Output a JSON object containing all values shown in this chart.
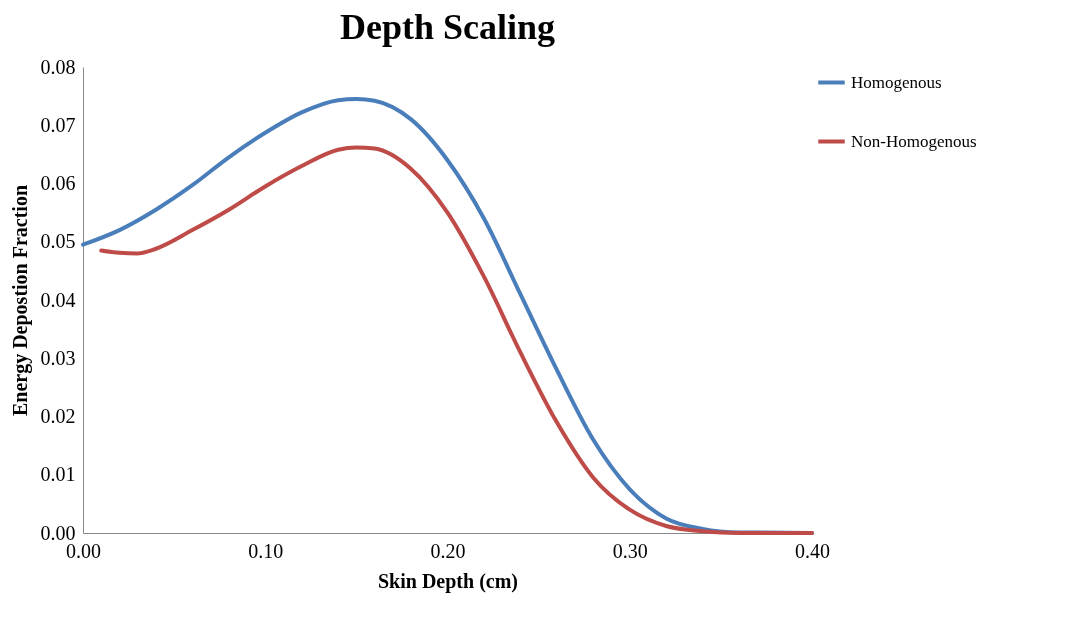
{
  "chart_data": {
    "type": "line",
    "title": "Depth Scaling",
    "xlabel": "Skin Depth (cm)",
    "ylabel": "Energy Depostion Fraction",
    "xlim": [
      0,
      0.4
    ],
    "ylim": [
      0,
      0.08
    ],
    "xticks": [
      {
        "value": 0,
        "label": "0.00"
      },
      {
        "value": 0.1,
        "label": "0.10"
      },
      {
        "value": 0.2,
        "label": "0.20"
      },
      {
        "value": 0.3,
        "label": "0.30"
      },
      {
        "value": 0.4,
        "label": "0.40"
      }
    ],
    "yticks": [
      {
        "value": 0,
        "label": "0.00"
      },
      {
        "value": 0.01,
        "label": "0.01"
      },
      {
        "value": 0.02,
        "label": "0.02"
      },
      {
        "value": 0.03,
        "label": "0.03"
      },
      {
        "value": 0.04,
        "label": "0.04"
      },
      {
        "value": 0.05,
        "label": "0.05"
      },
      {
        "value": 0.06,
        "label": "0.06"
      },
      {
        "value": 0.07,
        "label": "0.07"
      },
      {
        "value": 0.08,
        "label": "0.08"
      }
    ],
    "grid": false,
    "legend": "right",
    "marker": "none",
    "line_style": "solid",
    "series": [
      {
        "name": "Homogenous",
        "color": "#4a7ebb",
        "x": [
          0,
          0.02,
          0.04,
          0.06,
          0.08,
          0.1,
          0.12,
          0.14,
          0.15,
          0.16,
          0.18,
          0.2,
          0.22,
          0.24,
          0.26,
          0.28,
          0.3,
          0.32,
          0.34,
          0.36,
          0.4
        ],
        "values": [
          0.0495,
          0.052,
          0.0555,
          0.0597,
          0.0645,
          0.0687,
          0.0722,
          0.0743,
          0.0745,
          0.0742,
          0.071,
          0.064,
          0.054,
          0.041,
          0.028,
          0.016,
          0.0075,
          0.0025,
          0.0007,
          0.0001,
          0
        ]
      },
      {
        "name": "Non-Homogenous",
        "color": "#be4b48",
        "x": [
          0.01,
          0.02,
          0.03,
          0.04,
          0.06,
          0.08,
          0.1,
          0.12,
          0.14,
          0.15,
          0.16,
          0.18,
          0.2,
          0.22,
          0.24,
          0.26,
          0.28,
          0.3,
          0.32,
          0.34,
          0.36,
          0.4
        ],
        "values": [
          0.0485,
          0.0481,
          0.048,
          0.0488,
          0.052,
          0.0555,
          0.0595,
          0.063,
          0.0658,
          0.0662,
          0.066,
          0.0625,
          0.055,
          0.044,
          0.031,
          0.019,
          0.0095,
          0.004,
          0.0012,
          0.0003,
          0,
          0
        ]
      }
    ]
  }
}
